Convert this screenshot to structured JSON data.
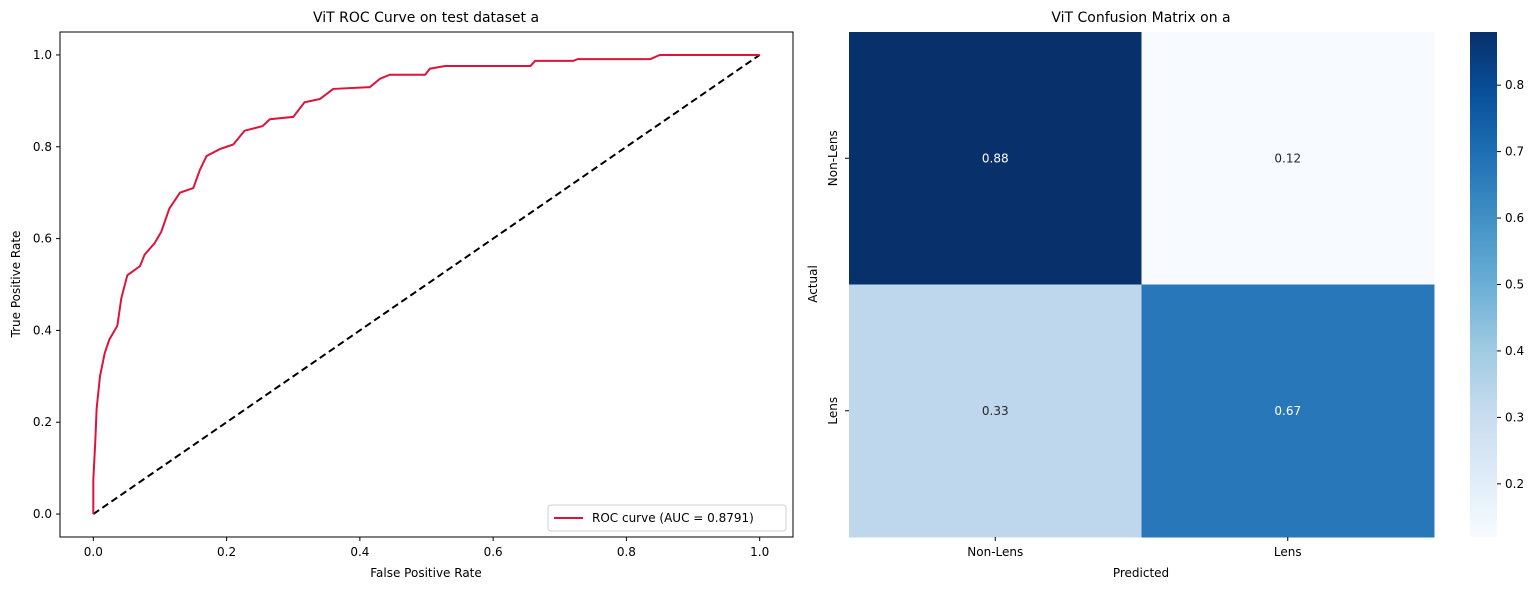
{
  "chart_data": [
    {
      "type": "line",
      "title": "ViT ROC Curve on test dataset a",
      "xlabel": "False Positive Rate",
      "ylabel": "True Positive Rate",
      "xlim": [
        -0.05,
        1.05
      ],
      "ylim": [
        -0.05,
        1.05
      ],
      "xticks": [
        "0.0",
        "0.2",
        "0.4",
        "0.6",
        "0.8",
        "1.0"
      ],
      "yticks": [
        "0.0",
        "0.2",
        "0.4",
        "0.6",
        "0.8",
        "1.0"
      ],
      "grid": false,
      "legend_position": "lower-right",
      "series": [
        {
          "name": "ROC curve (AUC = 0.8791)",
          "color": "#dc143c",
          "style": "solid",
          "x": [
            0,
            0,
            0.003,
            0.005,
            0.01,
            0.017,
            0.024,
            0.036,
            0.042,
            0.051,
            0.07,
            0.077,
            0.092,
            0.102,
            0.114,
            0.13,
            0.15,
            0.16,
            0.17,
            0.19,
            0.21,
            0.227,
            0.254,
            0.265,
            0.3,
            0.317,
            0.34,
            0.36,
            0.415,
            0.43,
            0.445,
            0.498,
            0.505,
            0.528,
            0.595,
            0.656,
            0.663,
            0.72,
            0.727,
            0.836,
            0.85,
            1
          ],
          "y": [
            0,
            0.074,
            0.16,
            0.23,
            0.3,
            0.35,
            0.38,
            0.41,
            0.47,
            0.52,
            0.54,
            0.565,
            0.59,
            0.615,
            0.665,
            0.7,
            0.71,
            0.75,
            0.78,
            0.795,
            0.805,
            0.835,
            0.845,
            0.86,
            0.865,
            0.897,
            0.904,
            0.926,
            0.93,
            0.948,
            0.957,
            0.957,
            0.97,
            0.976,
            0.976,
            0.976,
            0.987,
            0.987,
            0.991,
            0.991,
            1.0,
            1.0
          ]
        },
        {
          "color": "#000000",
          "style": "dashed",
          "x": [
            0,
            1
          ],
          "y": [
            0,
            1
          ]
        }
      ]
    },
    {
      "type": "heatmap",
      "title": "ViT Confusion Matrix on a",
      "xlabel": "Predicted",
      "ylabel": "Actual",
      "x_categories": [
        "Non-Lens",
        "Lens"
      ],
      "y_categories": [
        "Non-Lens",
        "Lens"
      ],
      "values": [
        [
          0.88,
          0.12
        ],
        [
          0.33,
          0.67
        ]
      ],
      "value_labels": [
        [
          "0.88",
          "0.12"
        ],
        [
          "0.33",
          "0.67"
        ]
      ],
      "colormap": "Blues",
      "colorbar_range": [
        0.12,
        0.88
      ],
      "colorbar_ticks": [
        "0.2",
        "0.3",
        "0.4",
        "0.5",
        "0.6",
        "0.7",
        "0.8"
      ]
    }
  ]
}
